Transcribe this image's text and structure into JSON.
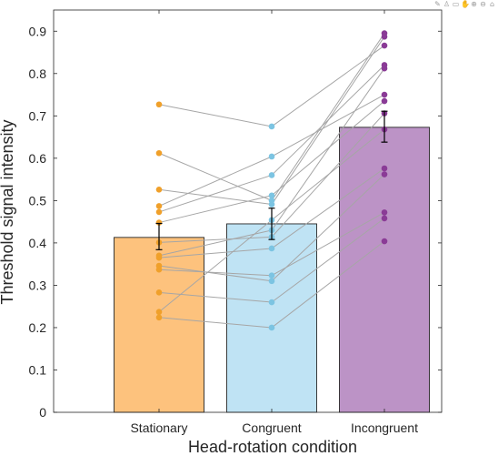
{
  "toolbar": {
    "icons": [
      {
        "name": "export-icon",
        "glyph": "✎"
      },
      {
        "name": "brush-icon",
        "glyph": "♙"
      },
      {
        "name": "datatip-icon",
        "glyph": "▭"
      },
      {
        "name": "pan-icon",
        "glyph": "✋"
      },
      {
        "name": "zoom-in-icon",
        "glyph": "⊕"
      },
      {
        "name": "zoom-out-icon",
        "glyph": "⊖"
      },
      {
        "name": "home-icon",
        "glyph": "⌂"
      }
    ]
  },
  "chart_data": {
    "type": "bar",
    "title": "",
    "xlabel": "Head-rotation condition",
    "ylabel": "Threshold signal intensity",
    "categories": [
      "Stationary",
      "Congruent",
      "Incongruent"
    ],
    "values": [
      0.413,
      0.445,
      0.673
    ],
    "error_low": [
      0.384,
      0.408,
      0.638
    ],
    "error_high": [
      0.446,
      0.482,
      0.711
    ],
    "ylim": [
      0,
      0.95
    ],
    "yticks": [
      0,
      0.1,
      0.2,
      0.3,
      0.4,
      0.5,
      0.6,
      0.7,
      0.8,
      0.9
    ],
    "ytick_labels": [
      "0",
      "0.1",
      "0.2",
      "0.3",
      "0.4",
      "0.5",
      "0.6",
      "0.7",
      "0.8",
      "0.9"
    ],
    "colors": {
      "bars": [
        "#fdc27d",
        "#bfe3f4",
        "#bc93c6"
      ],
      "points": [
        "#f0a02a",
        "#7cc4e2",
        "#8a3b96"
      ],
      "lines": "#a6a6a6",
      "bar_edge": "#262626"
    },
    "subjects": [
      [
        0.727,
        0.675,
        0.866
      ],
      [
        0.612,
        0.5,
        0.895
      ],
      [
        0.526,
        0.491,
        0.887
      ],
      [
        0.487,
        0.604,
        0.75
      ],
      [
        0.473,
        0.56,
        0.82
      ],
      [
        0.448,
        0.512,
        0.735
      ],
      [
        0.401,
        0.414,
        0.706
      ],
      [
        0.365,
        0.387,
        0.576
      ],
      [
        0.346,
        0.31,
        0.562
      ],
      [
        0.337,
        0.323,
        0.472
      ],
      [
        0.283,
        0.26,
        0.458
      ],
      [
        0.237,
        0.454,
        0.668
      ],
      [
        0.224,
        0.2,
        0.404
      ],
      [
        0.37,
        0.43,
        0.812
      ]
    ]
  }
}
